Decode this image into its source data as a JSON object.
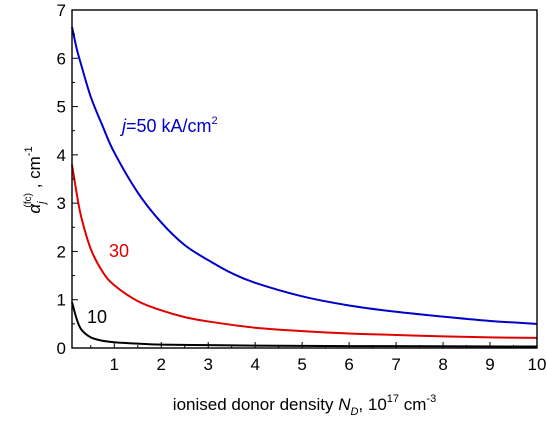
{
  "chart_data": {
    "type": "line",
    "xlabel": {
      "text": "ionised donor density ",
      "var": "N",
      "var_sub": "D",
      "sep": ", 10",
      "sup": "17",
      "unit_pre": " cm",
      "unit_sup": "-3"
    },
    "ylabel": {
      "alpha": "α",
      "sub": "j",
      "sup": "(fc)",
      "unit": " ,  cm",
      "unit_sup": "-1"
    },
    "xlim": [
      0.1,
      10
    ],
    "ylim": [
      0,
      7
    ],
    "xticks": [
      1,
      2,
      3,
      4,
      5,
      6,
      7,
      8,
      9,
      10
    ],
    "yticks": [
      0,
      1,
      2,
      3,
      4,
      5,
      6,
      7
    ],
    "grid": false,
    "series": [
      {
        "color": "#0000c8",
        "points": [
          [
            0.1,
            6.65
          ],
          [
            0.2,
            6.2
          ],
          [
            0.3,
            5.85
          ],
          [
            0.5,
            5.2
          ],
          [
            0.75,
            4.6
          ],
          [
            1,
            4.05
          ],
          [
            1.5,
            3.22
          ],
          [
            2,
            2.6
          ],
          [
            2.5,
            2.13
          ],
          [
            3,
            1.82
          ],
          [
            3.5,
            1.55
          ],
          [
            4,
            1.35
          ],
          [
            5,
            1.07
          ],
          [
            6,
            0.88
          ],
          [
            7,
            0.75
          ],
          [
            8,
            0.65
          ],
          [
            9,
            0.56
          ],
          [
            10,
            0.5
          ]
        ],
        "label": {
          "prefix": "j",
          "text": "=50 kA/cm",
          "sup": "2"
        }
      },
      {
        "color": "#e00000",
        "points": [
          [
            0.1,
            3.8
          ],
          [
            0.2,
            3.2
          ],
          [
            0.3,
            2.7
          ],
          [
            0.5,
            2.05
          ],
          [
            0.75,
            1.58
          ],
          [
            1,
            1.3
          ],
          [
            1.5,
            0.97
          ],
          [
            2,
            0.78
          ],
          [
            2.5,
            0.64
          ],
          [
            3,
            0.55
          ],
          [
            4,
            0.42
          ],
          [
            5,
            0.35
          ],
          [
            6,
            0.3
          ],
          [
            7,
            0.27
          ],
          [
            8,
            0.24
          ],
          [
            9,
            0.22
          ],
          [
            10,
            0.21
          ]
        ],
        "label": {
          "text": "30"
        }
      },
      {
        "color": "#000000",
        "points": [
          [
            0.1,
            0.95
          ],
          [
            0.2,
            0.6
          ],
          [
            0.3,
            0.38
          ],
          [
            0.5,
            0.22
          ],
          [
            0.75,
            0.15
          ],
          [
            1,
            0.12
          ],
          [
            1.5,
            0.09
          ],
          [
            2,
            0.07
          ],
          [
            3,
            0.06
          ],
          [
            4,
            0.05
          ],
          [
            6,
            0.04
          ],
          [
            10,
            0.03
          ]
        ],
        "label": {
          "text": "10"
        }
      }
    ]
  }
}
